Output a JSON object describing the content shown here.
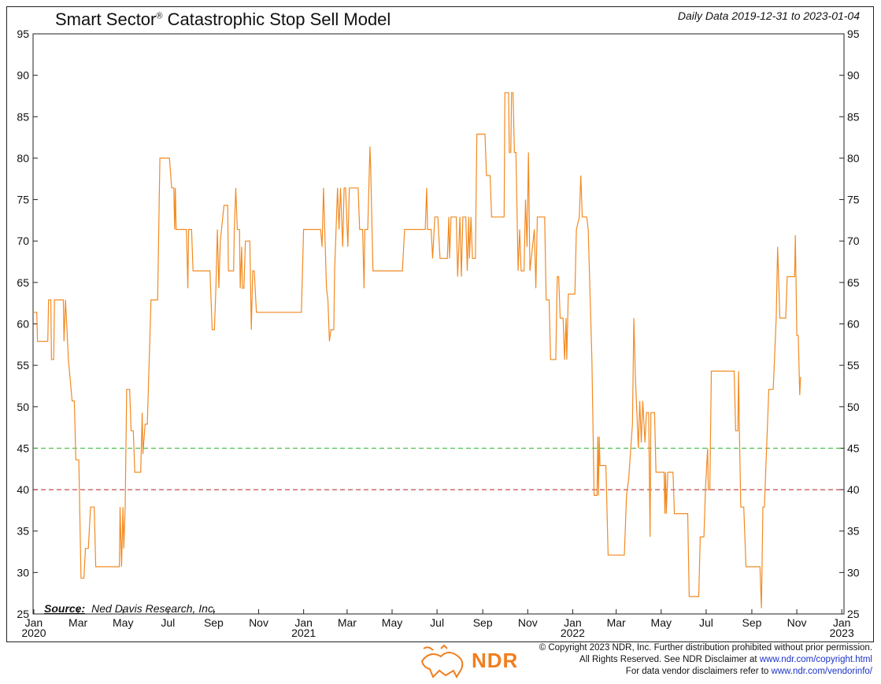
{
  "header": {
    "title": "Smart Sector",
    "title_mark": "®",
    "title_rest": " Catastrophic Stop Sell Model",
    "date_range": "Daily Data 2019-12-31 to 2023-01-04"
  },
  "source": {
    "label": "Source:",
    "text": "Ned Davis Research, Inc."
  },
  "footer": {
    "line1": "© Copyright 2023 NDR, Inc. Further distribution prohibited without prior permission.",
    "line2_text": "All Rights Reserved. See NDR Disclaimer at ",
    "line2_link": "www.ndr.com/copyright.html",
    "line3_text": "For data vendor disclaimers refer to ",
    "line3_link": "www.ndr.com/vendorinfo/",
    "logo_text": "NDR"
  },
  "colors": {
    "line": "#f28a21",
    "green_ref": "#2bb52b",
    "red_ref": "#b32222",
    "accent": "#f07e1f"
  },
  "chart_data": {
    "type": "line",
    "title": "Smart Sector® Catastrophic Stop Sell Model",
    "ylim": [
      25,
      95
    ],
    "yticks": [
      25,
      30,
      35,
      40,
      45,
      50,
      55,
      60,
      65,
      70,
      75,
      80,
      85,
      90,
      95
    ],
    "xlim": [
      "2019-12-31",
      "2023-01-04"
    ],
    "xticks": [
      {
        "date": "2020-01-01",
        "label": "Jan",
        "year": "2020"
      },
      {
        "date": "2020-03-01",
        "label": "Mar"
      },
      {
        "date": "2020-05-01",
        "label": "May"
      },
      {
        "date": "2020-07-01",
        "label": "Jul"
      },
      {
        "date": "2020-09-01",
        "label": "Sep"
      },
      {
        "date": "2020-11-01",
        "label": "Nov"
      },
      {
        "date": "2021-01-01",
        "label": "Jan",
        "year": "2021"
      },
      {
        "date": "2021-03-01",
        "label": "Mar"
      },
      {
        "date": "2021-05-01",
        "label": "May"
      },
      {
        "date": "2021-07-01",
        "label": "Jul"
      },
      {
        "date": "2021-09-01",
        "label": "Sep"
      },
      {
        "date": "2021-11-01",
        "label": "Nov"
      },
      {
        "date": "2022-01-01",
        "label": "Jan",
        "year": "2022"
      },
      {
        "date": "2022-03-01",
        "label": "Mar"
      },
      {
        "date": "2022-05-01",
        "label": "May"
      },
      {
        "date": "2022-07-01",
        "label": "Jul"
      },
      {
        "date": "2022-09-01",
        "label": "Sep"
      },
      {
        "date": "2022-11-01",
        "label": "Nov"
      },
      {
        "date": "2023-01-01",
        "label": "Jan",
        "year": "2023"
      }
    ],
    "reference_lines": [
      {
        "value": 45,
        "color": "#2bb52b",
        "style": "dashed"
      },
      {
        "value": 40,
        "color": "#b32222",
        "style": "dashed"
      }
    ],
    "series": [
      {
        "points": [
          [
            "2019-12-31",
            61.4
          ],
          [
            "2020-01-05",
            61.4
          ],
          [
            "2020-01-06",
            57.9
          ],
          [
            "2020-01-20",
            57.9
          ],
          [
            "2020-01-21",
            62.9
          ],
          [
            "2020-01-24",
            62.9
          ],
          [
            "2020-01-25",
            55.7
          ],
          [
            "2020-01-28",
            55.7
          ],
          [
            "2020-01-29",
            62.9
          ],
          [
            "2020-02-10",
            62.9
          ],
          [
            "2020-02-11",
            57.9
          ],
          [
            "2020-02-13",
            62.9
          ],
          [
            "2020-02-17",
            55.7
          ],
          [
            "2020-02-22",
            50.7
          ],
          [
            "2020-02-25",
            50.7
          ],
          [
            "2020-02-27",
            43.6
          ],
          [
            "2020-03-02",
            43.6
          ],
          [
            "2020-03-05",
            29.3
          ],
          [
            "2020-03-09",
            29.3
          ],
          [
            "2020-03-11",
            32.9
          ],
          [
            "2020-03-15",
            32.9
          ],
          [
            "2020-03-18",
            37.9
          ],
          [
            "2020-03-23",
            37.9
          ],
          [
            "2020-03-25",
            30.7
          ],
          [
            "2020-04-26",
            30.7
          ],
          [
            "2020-04-27",
            37.9
          ],
          [
            "2020-04-29",
            30.7
          ],
          [
            "2020-05-01",
            37.9
          ],
          [
            "2020-05-02",
            32.9
          ],
          [
            "2020-05-04",
            37.9
          ],
          [
            "2020-05-06",
            52.1
          ],
          [
            "2020-05-10",
            52.1
          ],
          [
            "2020-05-12",
            47.1
          ],
          [
            "2020-05-15",
            47.1
          ],
          [
            "2020-05-17",
            42.1
          ],
          [
            "2020-05-25",
            42.1
          ],
          [
            "2020-05-27",
            49.3
          ],
          [
            "2020-05-28",
            44.3
          ],
          [
            "2020-05-31",
            47.9
          ],
          [
            "2020-06-03",
            47.9
          ],
          [
            "2020-06-08",
            62.9
          ],
          [
            "2020-06-17",
            62.9
          ],
          [
            "2020-06-20",
            80.0
          ],
          [
            "2020-07-03",
            80.0
          ],
          [
            "2020-07-06",
            76.4
          ],
          [
            "2020-07-09",
            76.4
          ],
          [
            "2020-07-10",
            71.4
          ],
          [
            "2020-07-11",
            76.4
          ],
          [
            "2020-07-12",
            71.4
          ],
          [
            "2020-07-26",
            71.4
          ],
          [
            "2020-07-28",
            64.3
          ],
          [
            "2020-07-29",
            71.4
          ],
          [
            "2020-08-02",
            71.4
          ],
          [
            "2020-08-04",
            66.4
          ],
          [
            "2020-08-27",
            66.4
          ],
          [
            "2020-08-30",
            59.3
          ],
          [
            "2020-09-02",
            59.3
          ],
          [
            "2020-09-04",
            64.3
          ],
          [
            "2020-09-06",
            71.4
          ],
          [
            "2020-09-08",
            64.3
          ],
          [
            "2020-09-10",
            70.0
          ],
          [
            "2020-09-15",
            74.3
          ],
          [
            "2020-09-20",
            74.3
          ],
          [
            "2020-09-21",
            66.4
          ],
          [
            "2020-09-28",
            66.4
          ],
          [
            "2020-09-29",
            71.4
          ],
          [
            "2020-10-01",
            76.4
          ],
          [
            "2020-10-03",
            71.4
          ],
          [
            "2020-10-06",
            71.4
          ],
          [
            "2020-10-07",
            64.3
          ],
          [
            "2020-10-09",
            69.3
          ],
          [
            "2020-10-10",
            64.3
          ],
          [
            "2020-10-12",
            64.3
          ],
          [
            "2020-10-14",
            70.0
          ],
          [
            "2020-10-20",
            70.0
          ],
          [
            "2020-10-22",
            59.3
          ],
          [
            "2020-10-24",
            66.4
          ],
          [
            "2020-10-26",
            66.4
          ],
          [
            "2020-10-29",
            61.4
          ],
          [
            "2020-12-29",
            61.4
          ],
          [
            "2021-01-01",
            71.4
          ],
          [
            "2021-01-24",
            71.4
          ],
          [
            "2021-01-26",
            69.3
          ],
          [
            "2021-01-28",
            76.4
          ],
          [
            "2021-02-01",
            64.3
          ],
          [
            "2021-02-03",
            62.9
          ],
          [
            "2021-02-05",
            57.9
          ],
          [
            "2021-02-07",
            59.3
          ],
          [
            "2021-02-11",
            59.3
          ],
          [
            "2021-02-12",
            66.4
          ],
          [
            "2021-02-16",
            76.4
          ],
          [
            "2021-02-18",
            71.4
          ],
          [
            "2021-02-20",
            76.4
          ],
          [
            "2021-02-23",
            69.3
          ],
          [
            "2021-02-25",
            76.4
          ],
          [
            "2021-02-27",
            76.4
          ],
          [
            "2021-03-02",
            69.3
          ],
          [
            "2021-03-04",
            76.4
          ],
          [
            "2021-03-16",
            76.4
          ],
          [
            "2021-03-18",
            71.4
          ],
          [
            "2021-03-22",
            71.4
          ],
          [
            "2021-03-24",
            64.3
          ],
          [
            "2021-03-25",
            71.4
          ],
          [
            "2021-03-29",
            71.4
          ],
          [
            "2021-04-01",
            81.4
          ],
          [
            "2021-04-02",
            78.6
          ],
          [
            "2021-04-05",
            66.4
          ],
          [
            "2021-05-15",
            66.4
          ],
          [
            "2021-05-18",
            71.4
          ],
          [
            "2021-06-15",
            71.4
          ],
          [
            "2021-06-17",
            76.4
          ],
          [
            "2021-06-18",
            71.4
          ],
          [
            "2021-06-23",
            71.4
          ],
          [
            "2021-06-25",
            67.9
          ],
          [
            "2021-06-28",
            72.9
          ],
          [
            "2021-07-02",
            72.9
          ],
          [
            "2021-07-05",
            67.9
          ],
          [
            "2021-07-15",
            67.9
          ],
          [
            "2021-07-17",
            72.9
          ],
          [
            "2021-07-18",
            67.9
          ],
          [
            "2021-07-20",
            72.9
          ],
          [
            "2021-07-27",
            72.9
          ],
          [
            "2021-07-29",
            65.7
          ],
          [
            "2021-08-01",
            72.9
          ],
          [
            "2021-08-03",
            65.7
          ],
          [
            "2021-08-05",
            72.9
          ],
          [
            "2021-08-09",
            72.9
          ],
          [
            "2021-08-11",
            66.4
          ],
          [
            "2021-08-13",
            72.9
          ],
          [
            "2021-08-14",
            67.9
          ],
          [
            "2021-08-16",
            72.9
          ],
          [
            "2021-08-18",
            67.9
          ],
          [
            "2021-08-22",
            67.9
          ],
          [
            "2021-08-24",
            82.9
          ],
          [
            "2021-09-04",
            82.9
          ],
          [
            "2021-09-06",
            77.9
          ],
          [
            "2021-09-11",
            77.9
          ],
          [
            "2021-09-13",
            72.9
          ],
          [
            "2021-09-30",
            72.9
          ],
          [
            "2021-10-01",
            87.9
          ],
          [
            "2021-10-06",
            87.9
          ],
          [
            "2021-10-07",
            80.7
          ],
          [
            "2021-10-09",
            80.7
          ],
          [
            "2021-10-10",
            87.9
          ],
          [
            "2021-10-12",
            87.9
          ],
          [
            "2021-10-14",
            80.7
          ],
          [
            "2021-10-16",
            80.7
          ],
          [
            "2021-10-19",
            66.4
          ],
          [
            "2021-10-21",
            71.4
          ],
          [
            "2021-10-23",
            66.4
          ],
          [
            "2021-10-27",
            66.4
          ],
          [
            "2021-10-29",
            75.0
          ],
          [
            "2021-10-31",
            69.3
          ],
          [
            "2021-11-02",
            80.7
          ],
          [
            "2021-11-04",
            66.4
          ],
          [
            "2021-11-10",
            71.4
          ],
          [
            "2021-11-12",
            64.3
          ],
          [
            "2021-11-14",
            72.9
          ],
          [
            "2021-11-24",
            72.9
          ],
          [
            "2021-11-26",
            62.9
          ],
          [
            "2021-11-30",
            62.9
          ],
          [
            "2021-12-02",
            55.7
          ],
          [
            "2021-12-09",
            55.7
          ],
          [
            "2021-12-11",
            65.7
          ],
          [
            "2021-12-13",
            65.7
          ],
          [
            "2021-12-15",
            60.7
          ],
          [
            "2021-12-19",
            60.7
          ],
          [
            "2021-12-21",
            55.7
          ],
          [
            "2021-12-23",
            60.7
          ],
          [
            "2021-12-24",
            55.7
          ],
          [
            "2021-12-26",
            63.6
          ],
          [
            "2022-01-04",
            63.6
          ],
          [
            "2022-01-06",
            71.4
          ],
          [
            "2022-01-10",
            72.9
          ],
          [
            "2022-01-12",
            77.9
          ],
          [
            "2022-01-14",
            72.9
          ],
          [
            "2022-01-20",
            72.9
          ],
          [
            "2022-01-22",
            71.4
          ],
          [
            "2022-01-27",
            55.7
          ],
          [
            "2022-01-30",
            39.3
          ],
          [
            "2022-02-03",
            39.3
          ],
          [
            "2022-02-04",
            46.4
          ],
          [
            "2022-02-05",
            39.3
          ],
          [
            "2022-02-06",
            46.4
          ],
          [
            "2022-02-07",
            42.9
          ],
          [
            "2022-02-15",
            42.9
          ],
          [
            "2022-02-18",
            32.1
          ],
          [
            "2022-03-12",
            32.1
          ],
          [
            "2022-03-15",
            39.3
          ],
          [
            "2022-03-18",
            41.4
          ],
          [
            "2022-03-23",
            47.9
          ],
          [
            "2022-03-25",
            60.7
          ],
          [
            "2022-03-27",
            53.6
          ],
          [
            "2022-03-31",
            45.0
          ],
          [
            "2022-04-02",
            50.7
          ],
          [
            "2022-04-04",
            45.7
          ],
          [
            "2022-04-06",
            50.7
          ],
          [
            "2022-04-09",
            45.7
          ],
          [
            "2022-04-11",
            49.3
          ],
          [
            "2022-04-14",
            49.3
          ],
          [
            "2022-04-16",
            34.3
          ],
          [
            "2022-04-17",
            49.3
          ],
          [
            "2022-04-22",
            49.3
          ],
          [
            "2022-04-24",
            42.1
          ],
          [
            "2022-05-05",
            42.1
          ],
          [
            "2022-05-06",
            37.1
          ],
          [
            "2022-05-07",
            42.1
          ],
          [
            "2022-05-08",
            37.1
          ],
          [
            "2022-05-10",
            42.1
          ],
          [
            "2022-05-17",
            42.1
          ],
          [
            "2022-05-19",
            37.1
          ],
          [
            "2022-06-06",
            37.1
          ],
          [
            "2022-06-08",
            27.1
          ],
          [
            "2022-06-21",
            27.1
          ],
          [
            "2022-06-23",
            34.3
          ],
          [
            "2022-06-28",
            34.3
          ],
          [
            "2022-06-30",
            40.0
          ],
          [
            "2022-07-03",
            45.0
          ],
          [
            "2022-07-04",
            40.0
          ],
          [
            "2022-07-06",
            40.0
          ],
          [
            "2022-07-08",
            54.3
          ],
          [
            "2022-08-08",
            54.3
          ],
          [
            "2022-08-10",
            47.1
          ],
          [
            "2022-08-13",
            47.1
          ],
          [
            "2022-08-14",
            54.3
          ],
          [
            "2022-08-15",
            47.9
          ],
          [
            "2022-08-17",
            37.9
          ],
          [
            "2022-08-21",
            37.9
          ],
          [
            "2022-08-24",
            30.7
          ],
          [
            "2022-09-12",
            30.7
          ],
          [
            "2022-09-14",
            25.7
          ],
          [
            "2022-09-16",
            37.9
          ],
          [
            "2022-09-18",
            37.9
          ],
          [
            "2022-09-21",
            45.0
          ],
          [
            "2022-09-24",
            52.1
          ],
          [
            "2022-09-30",
            52.1
          ],
          [
            "2022-10-04",
            60.7
          ],
          [
            "2022-10-06",
            69.3
          ],
          [
            "2022-10-09",
            60.7
          ],
          [
            "2022-10-17",
            60.7
          ],
          [
            "2022-10-19",
            65.7
          ],
          [
            "2022-10-29",
            65.7
          ],
          [
            "2022-10-30",
            70.7
          ],
          [
            "2022-11-01",
            58.6
          ],
          [
            "2022-11-03",
            58.6
          ],
          [
            "2022-11-05",
            51.4
          ],
          [
            "2022-11-06",
            53.6
          ]
        ]
      }
    ]
  }
}
